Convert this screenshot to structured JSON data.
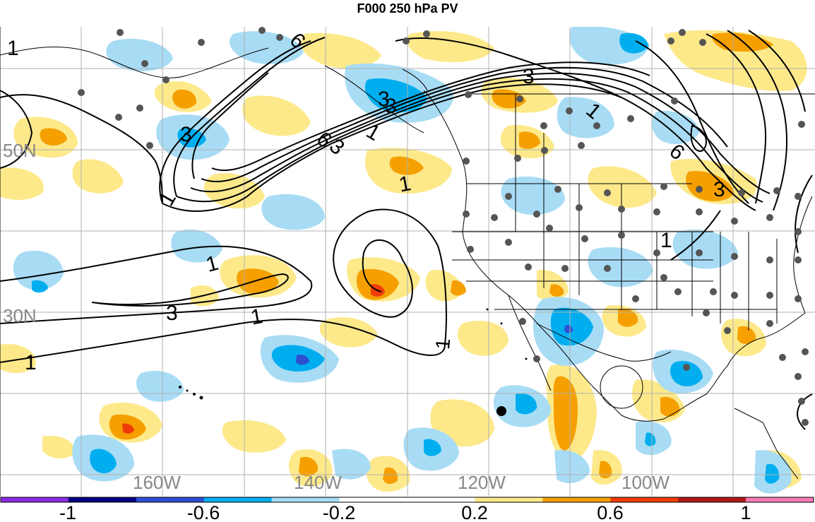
{
  "title": "F000 250 hPa PV",
  "map": {
    "lat_labels": [
      "50N",
      "30N"
    ],
    "lon_labels": [
      "160W",
      "140W",
      "120W",
      "100W"
    ],
    "contour_labels": [
      "1",
      "6",
      "3",
      "3",
      "6",
      "3",
      "1",
      "1",
      "3",
      "3",
      "1",
      "6",
      "3",
      "1",
      "1",
      "3",
      "1",
      "1",
      "1"
    ]
  },
  "colorbar": {
    "colors": [
      "#8a2be2",
      "#000080",
      "#2e4fd0",
      "#00aeef",
      "#a8dcf5",
      "#ffffff",
      "#ffffff",
      "#fde98a",
      "#f5a000",
      "#f03c0a",
      "#b01818",
      "#f77cb6"
    ],
    "tick_labels": [
      "-1",
      "-0.6",
      "-0.2",
      "0.2",
      "0.6",
      "1"
    ]
  },
  "colors": {
    "ocean": "#ffffff",
    "positive_light": "#fde98a",
    "positive_mid": "#f5a000",
    "positive_strong": "#f03c0a",
    "negative_light": "#a8dcf5",
    "negative_mid": "#00aeef",
    "negative_strong": "#2e4fd0",
    "contour": "#000000",
    "station_dot": "#555555",
    "grid": "#b0b0b0"
  }
}
